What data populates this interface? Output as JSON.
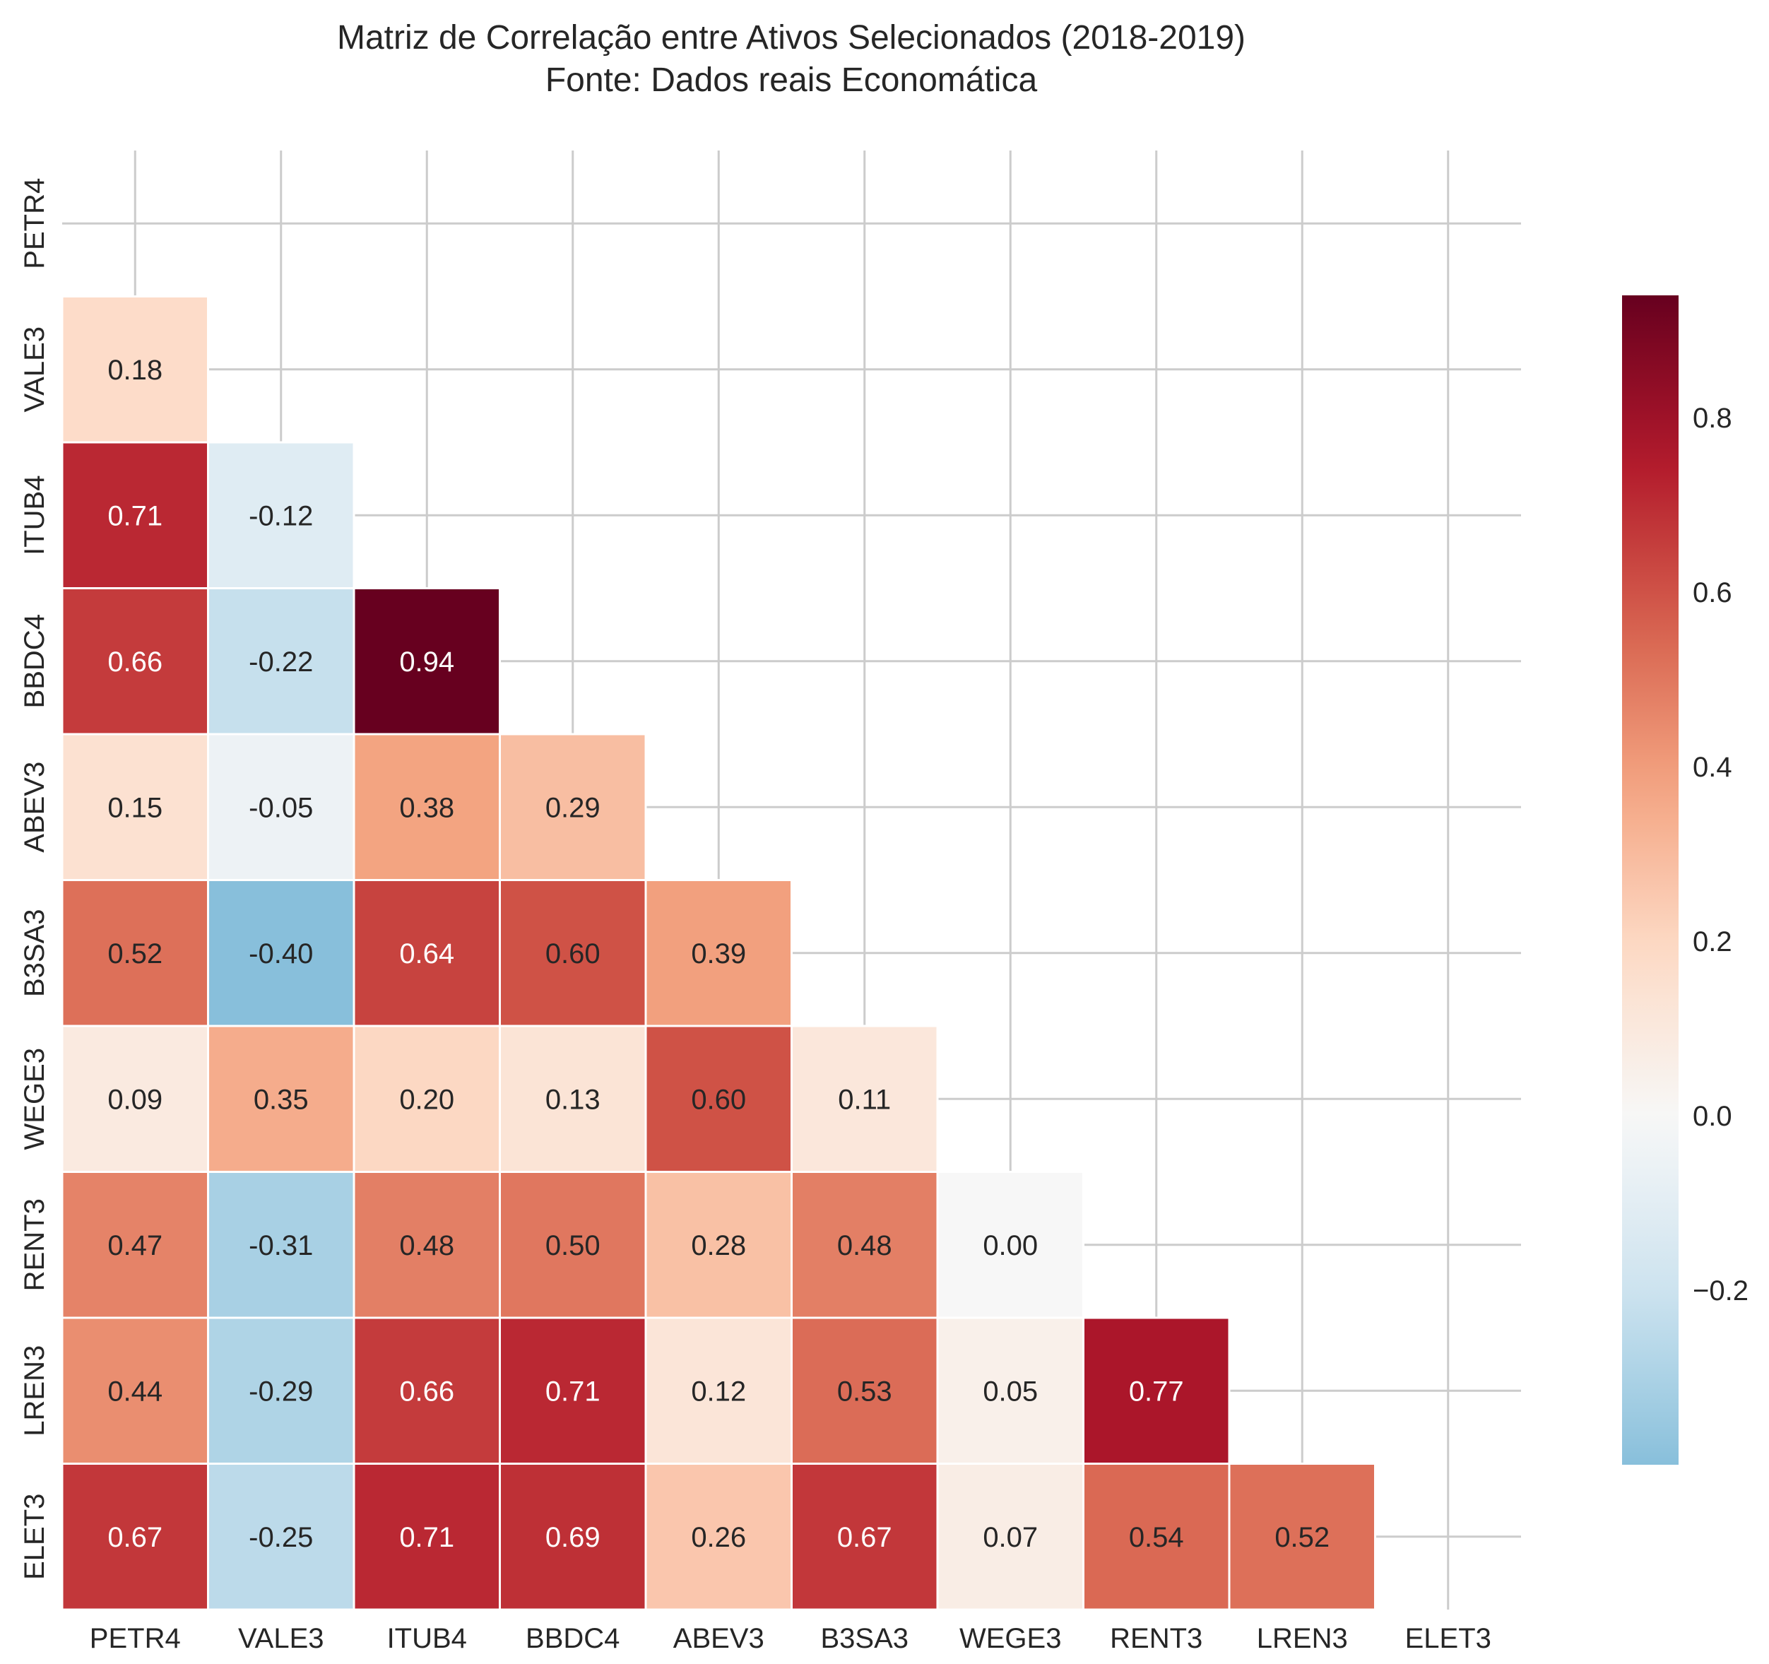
{
  "chart_data": {
    "type": "heatmap",
    "title": "Matriz de Correlação entre Ativos Selecionados (2018-2019)",
    "subtitle": "Fonte: Dados reais Economática",
    "xlabel": "",
    "ylabel": "",
    "mask": "upper-triangle-including-diagonal",
    "grid": true,
    "labels": [
      "PETR4",
      "VALE3",
      "ITUB4",
      "BBDC4",
      "ABEV3",
      "B3SA3",
      "WEGE3",
      "RENT3",
      "LREN3",
      "ELET3"
    ],
    "values": [
      [
        null,
        null,
        null,
        null,
        null,
        null,
        null,
        null,
        null,
        null
      ],
      [
        0.18,
        null,
        null,
        null,
        null,
        null,
        null,
        null,
        null,
        null
      ],
      [
        0.71,
        -0.12,
        null,
        null,
        null,
        null,
        null,
        null,
        null,
        null
      ],
      [
        0.66,
        -0.22,
        0.94,
        null,
        null,
        null,
        null,
        null,
        null,
        null
      ],
      [
        0.15,
        -0.05,
        0.38,
        0.29,
        null,
        null,
        null,
        null,
        null,
        null
      ],
      [
        0.52,
        -0.4,
        0.64,
        0.6,
        0.39,
        null,
        null,
        null,
        null,
        null
      ],
      [
        0.09,
        0.35,
        0.2,
        0.13,
        0.6,
        0.11,
        null,
        null,
        null,
        null
      ],
      [
        0.47,
        -0.31,
        0.48,
        0.5,
        0.28,
        0.48,
        0.0,
        null,
        null,
        null
      ],
      [
        0.44,
        -0.29,
        0.66,
        0.71,
        0.12,
        0.53,
        0.05,
        0.77,
        null,
        null
      ],
      [
        0.67,
        -0.25,
        0.71,
        0.69,
        0.26,
        0.67,
        0.07,
        0.54,
        0.52,
        null
      ]
    ],
    "colorbar": {
      "colormap": "RdBu_r",
      "center": 0,
      "range": [
        -0.4,
        0.94
      ],
      "ticks": [
        -0.2,
        0.0,
        0.2,
        0.4,
        0.6,
        0.8
      ],
      "tick_labels": [
        "−0.2",
        "0.0",
        "0.2",
        "0.4",
        "0.6",
        "0.8"
      ]
    }
  }
}
